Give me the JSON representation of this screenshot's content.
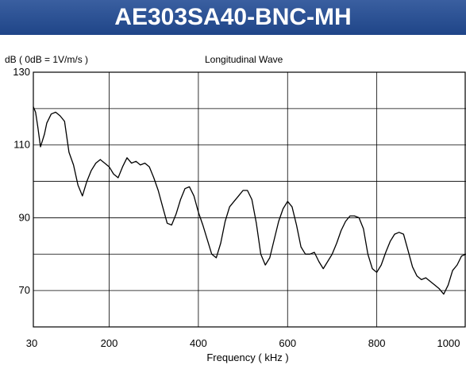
{
  "banner": {
    "title": "AE303SA40-BNC-MH"
  },
  "chart_data": {
    "type": "line",
    "title": "Longitudinal Wave",
    "ylabel": "dB ( 0dB = 1V/m/s )",
    "xlabel": "Frequency ( kHz )",
    "xlim": [
      30,
      1000
    ],
    "ylim": [
      60,
      130
    ],
    "x_ticks": [
      30,
      200,
      400,
      600,
      800,
      1000
    ],
    "y_ticks": [
      70,
      90,
      110,
      130
    ],
    "grid": true,
    "series": [
      {
        "color": "#000000",
        "x": [
          30,
          35,
          40,
          46,
          50,
          55,
          60,
          70,
          80,
          90,
          100,
          110,
          120,
          130,
          140,
          150,
          160,
          170,
          180,
          190,
          200,
          210,
          220,
          230,
          240,
          250,
          260,
          270,
          280,
          290,
          300,
          310,
          320,
          330,
          340,
          350,
          360,
          370,
          380,
          390,
          400,
          410,
          420,
          430,
          440,
          450,
          460,
          470,
          480,
          490,
          500,
          510,
          520,
          530,
          540,
          550,
          560,
          570,
          580,
          590,
          600,
          610,
          620,
          630,
          640,
          650,
          660,
          670,
          680,
          690,
          700,
          710,
          720,
          730,
          740,
          750,
          760,
          770,
          780,
          790,
          800,
          810,
          820,
          830,
          840,
          850,
          860,
          870,
          880,
          890,
          900,
          910,
          920,
          930,
          940,
          950,
          960,
          970,
          980,
          990,
          1000
        ],
        "values": [
          120.5,
          119,
          115,
          109.5,
          111,
          113,
          116,
          118.5,
          119,
          118,
          116.5,
          108,
          104.5,
          99,
          96,
          100,
          103,
          105,
          106,
          105,
          104,
          102,
          101,
          104,
          106.5,
          105,
          105.5,
          104.5,
          105,
          104,
          101,
          97.5,
          93,
          88.5,
          88,
          91,
          95,
          98,
          98.5,
          96,
          91.5,
          88,
          84,
          80,
          79,
          83,
          89,
          93,
          94.5,
          96,
          97.5,
          97.5,
          95,
          88.5,
          80,
          77,
          79,
          84,
          89,
          92.5,
          94.5,
          93,
          88,
          82,
          80,
          80,
          80.5,
          78,
          76,
          78,
          80,
          83,
          86.5,
          89,
          90.5,
          90.5,
          90,
          87,
          80,
          76,
          75,
          77,
          80.5,
          83.5,
          85.5,
          86,
          85.5,
          81,
          76.5,
          74,
          73,
          73.5,
          72.5,
          71.5,
          70.5,
          69,
          71.5,
          75.5,
          77,
          79.5,
          80
        ]
      }
    ]
  }
}
